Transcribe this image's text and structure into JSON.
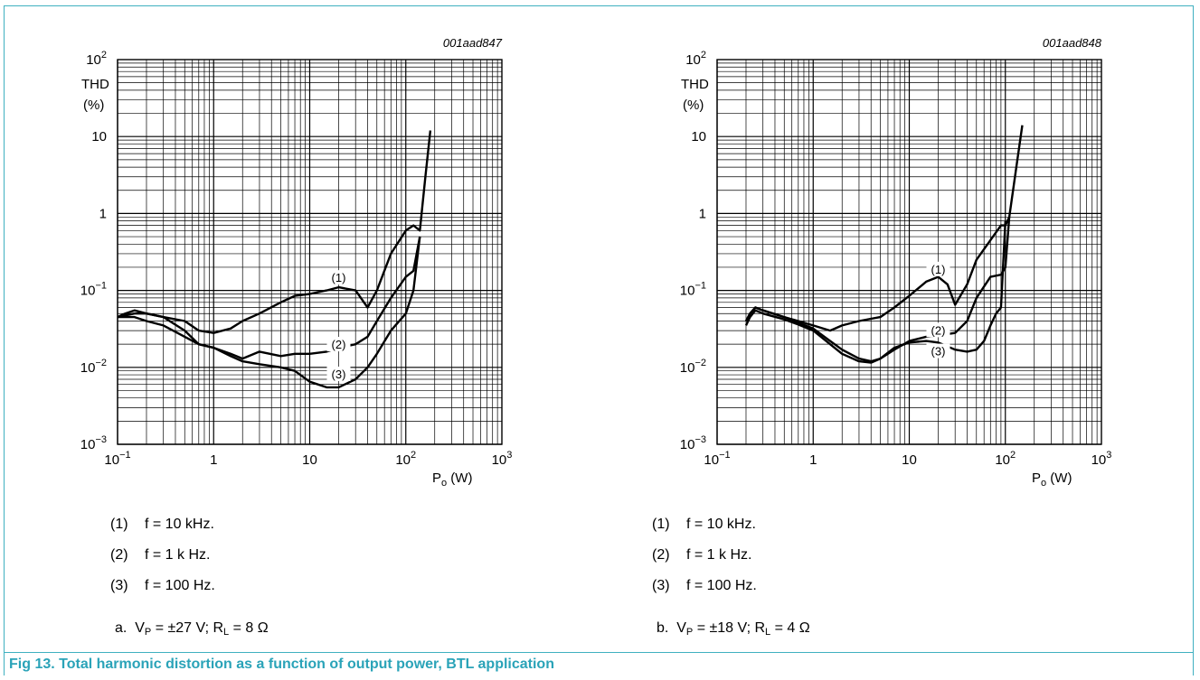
{
  "figure_caption": "Fig 13. Total harmonic distortion as a function of output power, BTL application",
  "colors": {
    "frame": "#3fb0c0",
    "caption": "#2aa3b8",
    "curve": "#000000",
    "grid": "#000000"
  },
  "chart_data": [
    {
      "type": "line",
      "id_label": "001aad847",
      "ylabel_line1": "THD",
      "ylabel_line2": "(%)",
      "xlabel": "P",
      "xlabel_sub": "o",
      "xlabel_unit": " (W)",
      "x_scale": "log",
      "y_scale": "log",
      "xlim": [
        0.1,
        1000
      ],
      "ylim": [
        0.001,
        100
      ],
      "x_ticks": [
        {
          "v": 0.1,
          "base": "10",
          "exp": "−1"
        },
        {
          "v": 1,
          "base": "1",
          "exp": ""
        },
        {
          "v": 10,
          "base": "10",
          "exp": ""
        },
        {
          "v": 100,
          "base": "10",
          "exp": "2"
        },
        {
          "v": 1000,
          "base": "10",
          "exp": "3"
        }
      ],
      "y_ticks": [
        {
          "v": 0.001,
          "base": "10",
          "exp": "−3"
        },
        {
          "v": 0.01,
          "base": "10",
          "exp": "−2"
        },
        {
          "v": 0.1,
          "base": "10",
          "exp": "−1"
        },
        {
          "v": 1,
          "base": "1",
          "exp": ""
        },
        {
          "v": 10,
          "base": "10",
          "exp": ""
        },
        {
          "v": 100,
          "base": "10",
          "exp": "2"
        }
      ],
      "grid": true,
      "series": [
        {
          "name": "(1)",
          "label_at": [
            20,
            0.14
          ],
          "x": [
            0.1,
            0.12,
            0.15,
            0.2,
            0.3,
            0.5,
            0.7,
            1,
            1.5,
            2,
            3,
            5,
            7,
            10,
            15,
            20,
            30,
            40,
            50,
            70,
            100,
            120,
            140,
            160,
            180
          ],
          "y": [
            0.045,
            0.05,
            0.055,
            0.05,
            0.045,
            0.04,
            0.03,
            0.028,
            0.032,
            0.04,
            0.05,
            0.07,
            0.085,
            0.09,
            0.1,
            0.11,
            0.1,
            0.06,
            0.1,
            0.3,
            0.6,
            0.7,
            0.6,
            3,
            12
          ]
        },
        {
          "name": "(2)",
          "label_at": [
            20,
            0.019
          ],
          "x": [
            0.1,
            0.15,
            0.2,
            0.3,
            0.5,
            0.7,
            1,
            1.5,
            2,
            3,
            5,
            7,
            10,
            15,
            20,
            30,
            40,
            50,
            70,
            100,
            120,
            140
          ],
          "y": [
            0.045,
            0.05,
            0.05,
            0.045,
            0.03,
            0.02,
            0.018,
            0.015,
            0.013,
            0.016,
            0.014,
            0.015,
            0.015,
            0.016,
            0.018,
            0.02,
            0.025,
            0.04,
            0.08,
            0.15,
            0.18,
            0.5
          ]
        },
        {
          "name": "(3)",
          "label_at": [
            20,
            0.0078
          ],
          "x": [
            0.1,
            0.15,
            0.2,
            0.3,
            0.5,
            0.7,
            1,
            1.5,
            2,
            3,
            5,
            7,
            10,
            15,
            20,
            30,
            40,
            50,
            70,
            100,
            120,
            140
          ],
          "y": [
            0.045,
            0.045,
            0.04,
            0.035,
            0.025,
            0.02,
            0.018,
            0.014,
            0.012,
            0.011,
            0.01,
            0.009,
            0.0065,
            0.0055,
            0.0055,
            0.007,
            0.01,
            0.015,
            0.03,
            0.05,
            0.1,
            0.5
          ]
        }
      ],
      "legend_items": [
        {
          "num": "(1)",
          "text": "f = 10 kHz."
        },
        {
          "num": "(2)",
          "text": "f = 1 k Hz."
        },
        {
          "num": "(3)",
          "text": "f = 100 Hz."
        }
      ],
      "condition": {
        "prefix": "a.",
        "v": "V",
        "v_sub": "P",
        "v_val": " = ±27 V; R",
        "r_sub": "L",
        "r_val": " = 8 Ω"
      }
    },
    {
      "type": "line",
      "id_label": "001aad848",
      "ylabel_line1": "THD",
      "ylabel_line2": "(%)",
      "xlabel": "P",
      "xlabel_sub": "o",
      "xlabel_unit": " (W)",
      "x_scale": "log",
      "y_scale": "log",
      "xlim": [
        0.1,
        1000
      ],
      "ylim": [
        0.001,
        100
      ],
      "x_ticks": [
        {
          "v": 0.1,
          "base": "10",
          "exp": "−1"
        },
        {
          "v": 1,
          "base": "1",
          "exp": ""
        },
        {
          "v": 10,
          "base": "10",
          "exp": ""
        },
        {
          "v": 100,
          "base": "10",
          "exp": "2"
        },
        {
          "v": 1000,
          "base": "10",
          "exp": "3"
        }
      ],
      "y_ticks": [
        {
          "v": 0.001,
          "base": "10",
          "exp": "−3"
        },
        {
          "v": 0.01,
          "base": "10",
          "exp": "−2"
        },
        {
          "v": 0.1,
          "base": "10",
          "exp": "−1"
        },
        {
          "v": 1,
          "base": "1",
          "exp": ""
        },
        {
          "v": 10,
          "base": "10",
          "exp": ""
        },
        {
          "v": 100,
          "base": "10",
          "exp": "2"
        }
      ],
      "grid": true,
      "series": [
        {
          "name": "(1)",
          "label_at": [
            20,
            0.18
          ],
          "x": [
            0.2,
            0.22,
            0.25,
            0.3,
            0.5,
            0.7,
            1,
            1.5,
            2,
            3,
            5,
            7,
            10,
            15,
            20,
            25,
            30,
            40,
            50,
            70,
            90,
            100,
            110,
            130,
            150
          ],
          "y": [
            0.04,
            0.05,
            0.06,
            0.055,
            0.045,
            0.04,
            0.035,
            0.03,
            0.035,
            0.04,
            0.045,
            0.06,
            0.085,
            0.13,
            0.15,
            0.12,
            0.065,
            0.12,
            0.25,
            0.45,
            0.7,
            0.7,
            0.9,
            4,
            14
          ]
        },
        {
          "name": "(2)",
          "label_at": [
            20,
            0.029
          ],
          "x": [
            0.2,
            0.22,
            0.25,
            0.3,
            0.5,
            0.7,
            1,
            1.5,
            2,
            3,
            4,
            5,
            7,
            10,
            15,
            20,
            30,
            40,
            50,
            70,
            90,
            100,
            110
          ],
          "y": [
            0.04,
            0.05,
            0.06,
            0.055,
            0.045,
            0.038,
            0.032,
            0.022,
            0.017,
            0.013,
            0.012,
            0.013,
            0.017,
            0.022,
            0.025,
            0.026,
            0.028,
            0.04,
            0.08,
            0.15,
            0.16,
            0.2,
            0.9
          ]
        },
        {
          "name": "(3)",
          "label_at": [
            20,
            0.0155
          ],
          "x": [
            0.2,
            0.22,
            0.25,
            0.3,
            0.5,
            0.7,
            1,
            1.5,
            2,
            3,
            4,
            5,
            7,
            10,
            15,
            20,
            30,
            40,
            50,
            60,
            70,
            80,
            90,
            100
          ],
          "y": [
            0.035,
            0.045,
            0.055,
            0.05,
            0.042,
            0.036,
            0.03,
            0.02,
            0.015,
            0.012,
            0.0115,
            0.013,
            0.018,
            0.021,
            0.022,
            0.021,
            0.017,
            0.016,
            0.017,
            0.022,
            0.035,
            0.05,
            0.06,
            0.8
          ]
        }
      ],
      "legend_items": [
        {
          "num": "(1)",
          "text": "f = 10 kHz."
        },
        {
          "num": "(2)",
          "text": "f = 1 k Hz."
        },
        {
          "num": "(3)",
          "text": "f = 100 Hz."
        }
      ],
      "condition": {
        "prefix": "b.",
        "v": "V",
        "v_sub": "P",
        "v_val": " = ±18 V; R",
        "r_sub": "L",
        "r_val": " = 4 Ω"
      }
    }
  ]
}
